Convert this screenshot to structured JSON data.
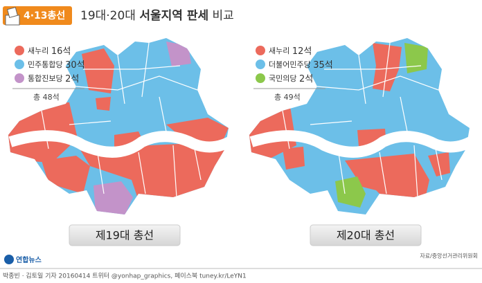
{
  "header": {
    "badge": "4·13총선",
    "title_pre": "19대·20대",
    "title_bold": "서울지역 판세",
    "title_post": "비교"
  },
  "maps": [
    {
      "legend": [
        {
          "party": "새누리",
          "seats": "16석",
          "color": "#ec6a5c"
        },
        {
          "party": "민주통합당",
          "seats": "30석",
          "color": "#6cbfe8"
        },
        {
          "party": "통합진보당",
          "seats": "2석",
          "color": "#c393c9"
        }
      ],
      "total": "총 48석",
      "label": "제19대 총선"
    },
    {
      "legend": [
        {
          "party": "새누리",
          "seats": "12석",
          "color": "#ec6a5c"
        },
        {
          "party": "더불어민주당",
          "seats": "35석",
          "color": "#6cbfe8"
        },
        {
          "party": "국민의당",
          "seats": "2석",
          "color": "#8cc84b"
        }
      ],
      "total": "총 49석",
      "label": "제20대 총선"
    }
  ],
  "source": "자료/중앙선거관리위원회",
  "logo": "연합뉴스",
  "footer": "박종빈 · 김토일 기자 20160414  트위터 @yonhap_graphics, 페이스북 tuney.kr/LeYN1"
}
